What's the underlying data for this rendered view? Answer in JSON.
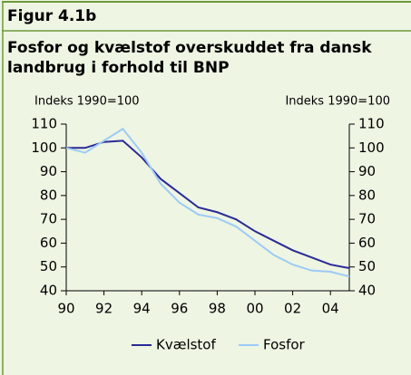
{
  "chart_data": {
    "type": "line",
    "figure_label": "Figur 4.1b",
    "title": [
      "Fosfor og kvælstof overskuddet fra dansk",
      "landbrug i forhold til BNP"
    ],
    "y_label": "Indeks 1990=100",
    "y2_label": "Indeks 1990=100",
    "x": [
      1990,
      1991,
      1992,
      1993,
      1994,
      1995,
      1996,
      1997,
      1998,
      1999,
      2000,
      2001,
      2002,
      2003,
      2004,
      2005
    ],
    "series": [
      {
        "name": "Kvælstof",
        "color": "#2a2a96",
        "values": [
          100,
          100,
          102.5,
          103,
          96,
          87,
          81,
          75,
          73,
          70,
          65,
          61,
          57,
          54,
          51,
          49.5
        ]
      },
      {
        "name": "Fosfor",
        "color": "#9dcbf5",
        "values": [
          100,
          98,
          103,
          108,
          98,
          85,
          77,
          72,
          70.5,
          67,
          61,
          55,
          51,
          48.5,
          48,
          46
        ]
      }
    ],
    "xlim": [
      1990,
      2005
    ],
    "xticks": [
      {
        "value": 1990,
        "label": "90"
      },
      {
        "value": 1992,
        "label": "92"
      },
      {
        "value": 1994,
        "label": "94"
      },
      {
        "value": 1996,
        "label": "96"
      },
      {
        "value": 1998,
        "label": "98"
      },
      {
        "value": 2000,
        "label": "00"
      },
      {
        "value": 2002,
        "label": "02"
      },
      {
        "value": 2004,
        "label": "04"
      }
    ],
    "ylim": [
      40,
      110
    ],
    "yticks": [
      40,
      50,
      60,
      70,
      80,
      90,
      100,
      110
    ],
    "y2lim": [
      40,
      110
    ],
    "y2ticks": [
      40,
      50,
      60,
      70,
      80,
      90,
      100,
      110
    ],
    "legend": "bottom"
  }
}
